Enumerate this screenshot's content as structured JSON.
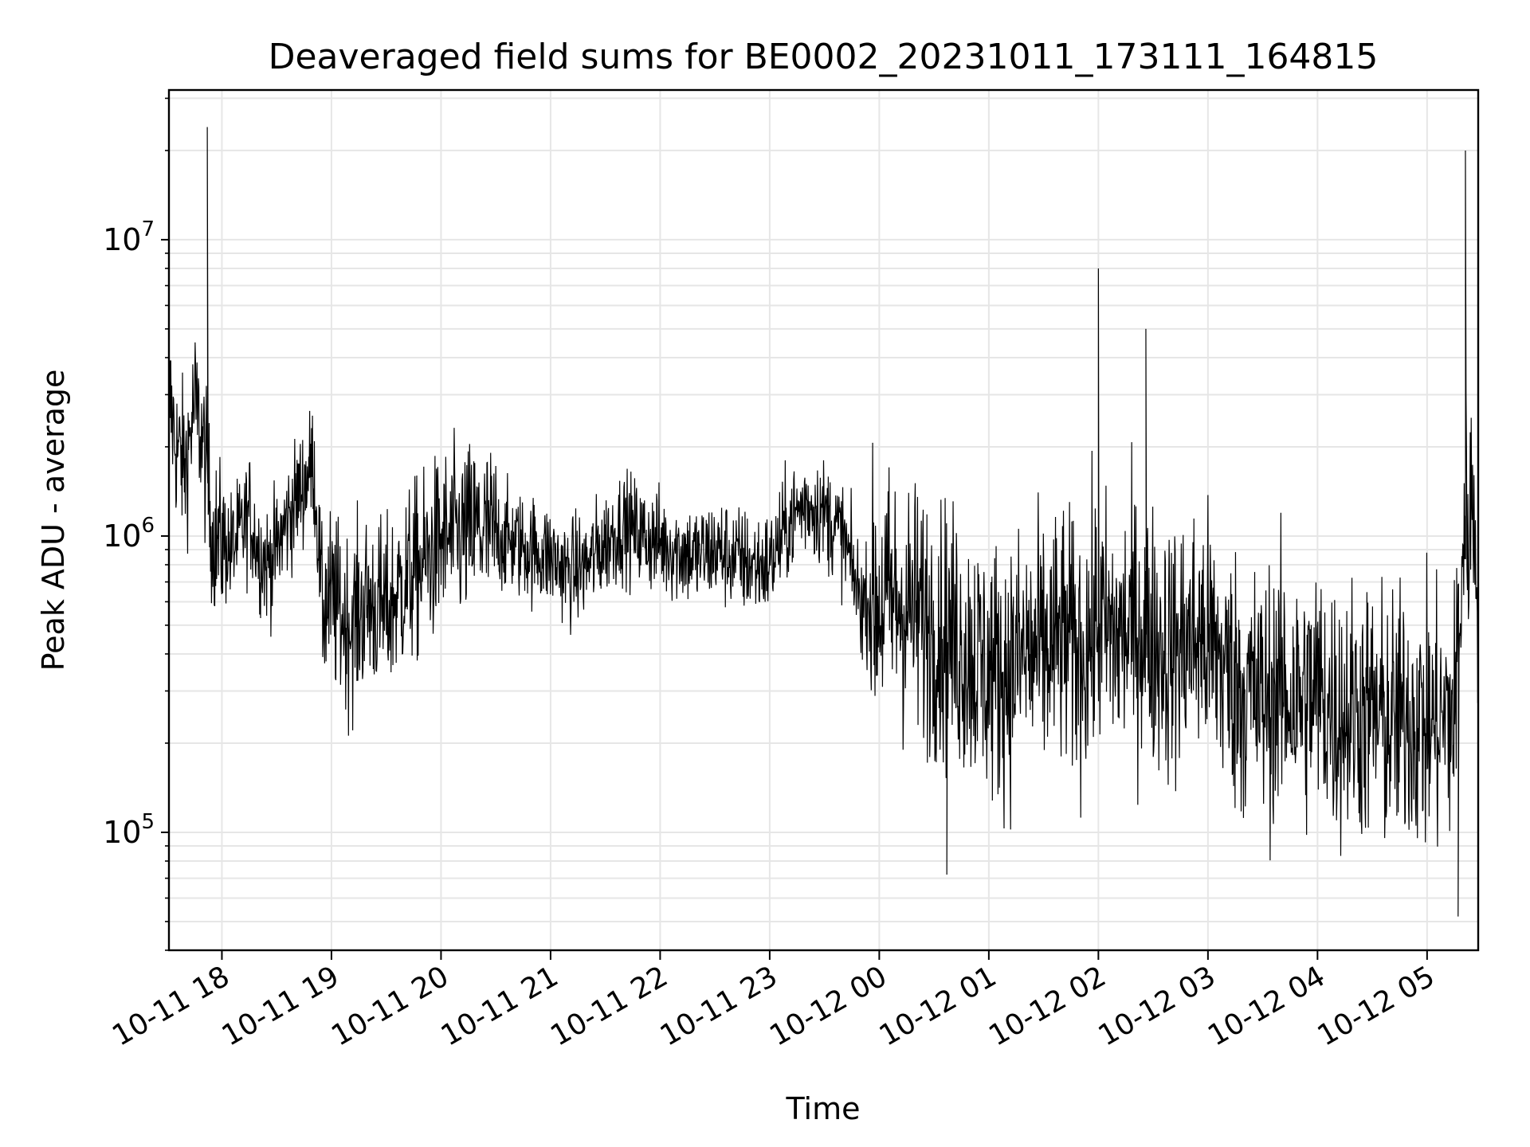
{
  "chart_data": {
    "type": "line",
    "title": "Deaveraged field sums for BE0002_20231011_173111_164815",
    "xlabel": "Time",
    "ylabel": "Peak ADU - average",
    "yscale": "log",
    "ylim": [
      40000,
      32000000
    ],
    "xlim": [
      "2023-10-11 17:31",
      "2023-10-12 05:28"
    ],
    "grid": true,
    "line_color": "#000000",
    "grid_color": "#e6e6e6",
    "x_ticks": [
      {
        "value": "2023-10-11 18:00",
        "label": "10-11 18"
      },
      {
        "value": "2023-10-11 19:00",
        "label": "10-11 19"
      },
      {
        "value": "2023-10-11 20:00",
        "label": "10-11 20"
      },
      {
        "value": "2023-10-11 21:00",
        "label": "10-11 21"
      },
      {
        "value": "2023-10-11 22:00",
        "label": "10-11 22"
      },
      {
        "value": "2023-10-11 23:00",
        "label": "10-11 23"
      },
      {
        "value": "2023-10-12 00:00",
        "label": "10-12 00"
      },
      {
        "value": "2023-10-12 01:00",
        "label": "10-12 01"
      },
      {
        "value": "2023-10-12 02:00",
        "label": "10-12 02"
      },
      {
        "value": "2023-10-12 03:00",
        "label": "10-12 03"
      },
      {
        "value": "2023-10-12 04:00",
        "label": "10-12 04"
      },
      {
        "value": "2023-10-12 05:00",
        "label": "10-12 05"
      }
    ],
    "y_ticks": [
      {
        "value": 100000,
        "base": "10",
        "exp": "5"
      },
      {
        "value": 1000000,
        "base": "10",
        "exp": "6"
      },
      {
        "value": 10000000,
        "base": "10",
        "exp": "7"
      }
    ],
    "series": [
      {
        "x": [
          "2023-10-11 17:31",
          "2023-10-11 17:35",
          "2023-10-11 17:40",
          "2023-10-11 17:45",
          "2023-10-11 17:50",
          "2023-10-11 17:52",
          "2023-10-11 17:55",
          "2023-10-11 18:00",
          "2023-10-11 18:05",
          "2023-10-11 18:10",
          "2023-10-11 18:15",
          "2023-10-11 18:20",
          "2023-10-11 18:25",
          "2023-10-11 18:30",
          "2023-10-11 18:35",
          "2023-10-11 18:40",
          "2023-10-11 18:45",
          "2023-10-11 18:50",
          "2023-10-11 18:55",
          "2023-10-11 19:00",
          "2023-10-11 19:10",
          "2023-10-11 19:20",
          "2023-10-11 19:30",
          "2023-10-11 19:40",
          "2023-10-11 19:50",
          "2023-10-11 20:00",
          "2023-10-11 20:10",
          "2023-10-11 20:20",
          "2023-10-11 20:30",
          "2023-10-11 20:40",
          "2023-10-11 20:50",
          "2023-10-11 21:00",
          "2023-10-11 21:10",
          "2023-10-11 21:20",
          "2023-10-11 21:30",
          "2023-10-11 21:40",
          "2023-10-11 21:50",
          "2023-10-11 22:00",
          "2023-10-11 22:10",
          "2023-10-11 22:20",
          "2023-10-11 22:30",
          "2023-10-11 22:40",
          "2023-10-11 22:50",
          "2023-10-11 23:00",
          "2023-10-11 23:10",
          "2023-10-11 23:20",
          "2023-10-11 23:30",
          "2023-10-11 23:40",
          "2023-10-11 23:50",
          "2023-10-12 00:00",
          "2023-10-12 00:10",
          "2023-10-12 00:20",
          "2023-10-12 00:30",
          "2023-10-12 00:40",
          "2023-10-12 00:50",
          "2023-10-12 01:00",
          "2023-10-12 01:10",
          "2023-10-12 01:20",
          "2023-10-12 01:30",
          "2023-10-12 01:40",
          "2023-10-12 01:50",
          "2023-10-12 02:00",
          "2023-10-12 02:10",
          "2023-10-12 02:20",
          "2023-10-12 02:30",
          "2023-10-12 02:40",
          "2023-10-12 02:50",
          "2023-10-12 03:00",
          "2023-10-12 03:10",
          "2023-10-12 03:20",
          "2023-10-12 03:30",
          "2023-10-12 03:40",
          "2023-10-12 03:50",
          "2023-10-12 04:00",
          "2023-10-12 04:10",
          "2023-10-12 04:20",
          "2023-10-12 04:30",
          "2023-10-12 04:40",
          "2023-10-12 04:50",
          "2023-10-12 05:00",
          "2023-10-12 05:10",
          "2023-10-12 05:15",
          "2023-10-12 05:20",
          "2023-10-12 05:25",
          "2023-10-12 05:28"
        ],
        "y": [
          3000000,
          2000000,
          1700000,
          2800000,
          2000000,
          1500000,
          1000000,
          950000,
          900000,
          1000000,
          1200000,
          900000,
          800000,
          900000,
          1100000,
          1300000,
          1500000,
          1800000,
          600000,
          600000,
          500000,
          600000,
          550000,
          700000,
          800000,
          950000,
          1000000,
          1050000,
          1000000,
          950000,
          900000,
          850000,
          750000,
          800000,
          950000,
          1100000,
          1000000,
          950000,
          900000,
          850000,
          900000,
          850000,
          800000,
          800000,
          1100000,
          1300000,
          1200000,
          1000000,
          600000,
          600000,
          600000,
          550000,
          500000,
          450000,
          400000,
          350000,
          350000,
          400000,
          400000,
          450000,
          400000,
          500000,
          450000,
          500000,
          450000,
          400000,
          450000,
          450000,
          350000,
          300000,
          280000,
          300000,
          280000,
          300000,
          250000,
          260000,
          250000,
          230000,
          250000,
          230000,
          240000,
          250000,
          1000000,
          1300000,
          800000
        ]
      }
    ]
  }
}
